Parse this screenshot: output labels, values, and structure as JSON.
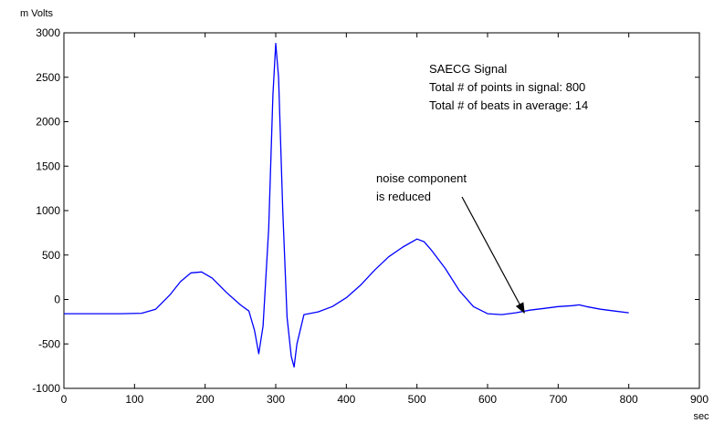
{
  "chart_data": {
    "type": "line",
    "title": "",
    "ylabel": "m Volts",
    "xlabel": "sec",
    "xlim": [
      0,
      900
    ],
    "ylim": [
      -1000,
      3000
    ],
    "xticks": [
      "0",
      "100",
      "200",
      "300",
      "400",
      "500",
      "600",
      "700",
      "800",
      "900"
    ],
    "yticks": [
      "3000",
      "2500",
      "2000",
      "1500",
      "1000",
      "500",
      "0",
      "-500",
      "-1000"
    ],
    "grid": false,
    "line_color": "#0000ff",
    "series": [
      {
        "name": "",
        "x": [
          0,
          40,
          80,
          110,
          130,
          150,
          165,
          180,
          195,
          210,
          230,
          250,
          262,
          270,
          276,
          282,
          290,
          296,
          300,
          304,
          310,
          316,
          322,
          326,
          330,
          340,
          360,
          380,
          400,
          420,
          440,
          460,
          480,
          500,
          510,
          520,
          540,
          560,
          580,
          600,
          620,
          640,
          660,
          680,
          700,
          720,
          730,
          740,
          760,
          780,
          800
        ],
        "y": [
          -160,
          -160,
          -160,
          -155,
          -110,
          50,
          200,
          300,
          310,
          240,
          80,
          -60,
          -130,
          -350,
          -610,
          -300,
          800,
          2300,
          2880,
          2500,
          1000,
          -200,
          -640,
          -760,
          -500,
          -170,
          -140,
          -80,
          20,
          160,
          330,
          480,
          590,
          680,
          650,
          560,
          350,
          100,
          -80,
          -160,
          -170,
          -150,
          -120,
          -100,
          -80,
          -70,
          -60,
          -80,
          -110,
          -130,
          -150
        ]
      }
    ],
    "annotations": [
      {
        "lines": [
          "SAECG Signal",
          "Total # of points in signal: 800",
          "Total # of beats in average: 14"
        ]
      },
      {
        "lines": [
          "noise component",
          "is reduced"
        ],
        "arrow_to": [
          652,
          -150
        ]
      }
    ]
  }
}
